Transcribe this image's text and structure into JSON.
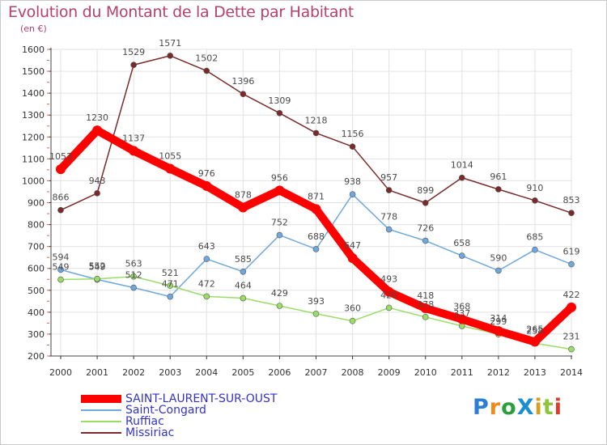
{
  "title": "Evolution du Montant de la Dette par Habitant",
  "subtitle": "(en €)",
  "logo": {
    "text": "ProXiti",
    "letters": [
      "P",
      "r",
      "o",
      "X",
      "i",
      "t",
      "i"
    ],
    "colors": [
      "#2a7fd4",
      "#f08a1c",
      "#2aa03c",
      "#1c8fd0",
      "#d4a020",
      "#8cc43c",
      "#e03a2a"
    ]
  },
  "chart_data": {
    "type": "line",
    "title": "Evolution du Montant de la Dette par Habitant",
    "ylabel": "(en €)",
    "xlabel": "",
    "categories": [
      "2000",
      "2001",
      "2002",
      "2003",
      "2004",
      "2005",
      "2006",
      "2007",
      "2008",
      "2009",
      "2010",
      "2011",
      "2012",
      "2013",
      "2014"
    ],
    "ylim": [
      200,
      1600
    ],
    "yticks": [
      200,
      300,
      400,
      500,
      600,
      700,
      800,
      900,
      1000,
      1100,
      1200,
      1300,
      1400,
      1500,
      1600
    ],
    "grid": true,
    "legend_position": "bottom-left",
    "series": [
      {
        "name": "SAINT-LAURENT-SUR-OUST",
        "color": "#ff0000",
        "thick": true,
        "values": [
          1053,
          1230,
          1137,
          1055,
          976,
          878,
          956,
          871,
          647,
          493,
          418,
          368,
          314,
          265,
          422
        ]
      },
      {
        "name": "Saint-Congard",
        "color": "#6fa8dc",
        "thick": false,
        "values": [
          594,
          549,
          512,
          471,
          643,
          585,
          752,
          688,
          938,
          778,
          726,
          658,
          590,
          685,
          619
        ]
      },
      {
        "name": "Ruffiac",
        "color": "#99dd66",
        "thick": false,
        "values": [
          549,
          552,
          563,
          521,
          472,
          464,
          429,
          393,
          360,
          420,
          378,
          337,
          299,
          258,
          231
        ]
      },
      {
        "name": "Missiriac",
        "color": "#7a2a2a",
        "thick": false,
        "values": [
          866,
          943,
          1529,
          1571,
          1502,
          1396,
          1309,
          1218,
          1156,
          957,
          899,
          1014,
          961,
          910,
          853
        ]
      }
    ]
  }
}
